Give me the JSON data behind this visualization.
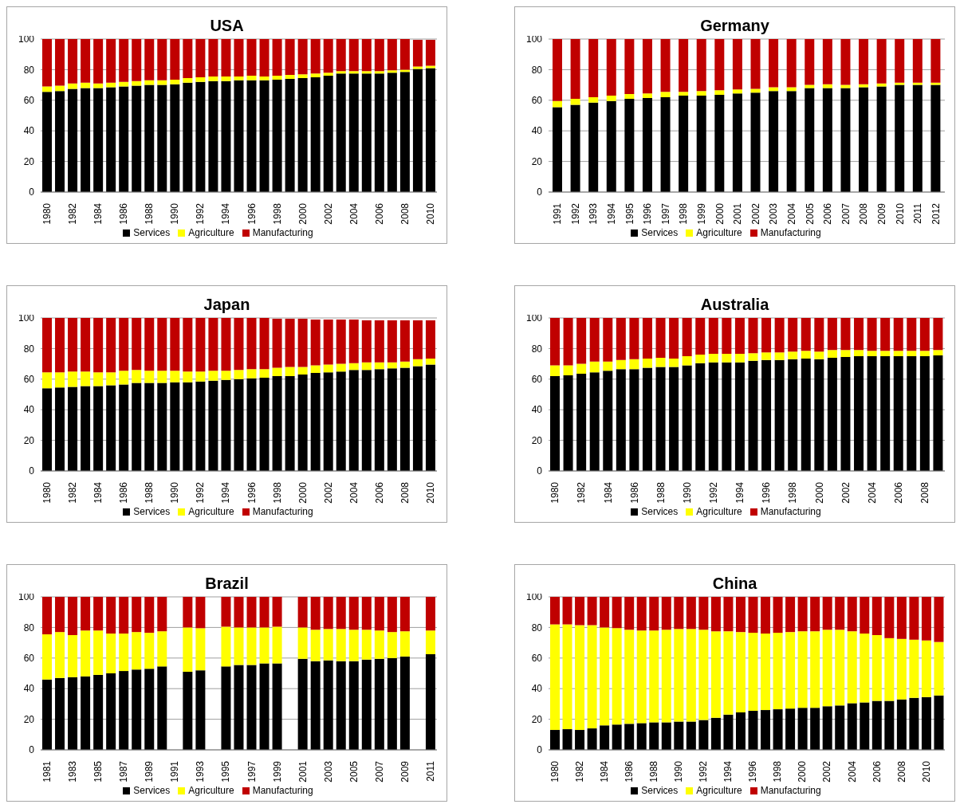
{
  "chart_data": [
    {
      "type": "bar",
      "title": "USA",
      "stacked": true,
      "ylim": [
        0,
        100
      ],
      "yticks": [
        0,
        20,
        40,
        60,
        80,
        100
      ],
      "grid": "y",
      "legend": "bottom",
      "categories": [
        "1980",
        null,
        "1982",
        null,
        "1984",
        null,
        "1986",
        null,
        "1988",
        null,
        "1990",
        null,
        "1992",
        null,
        "1994",
        null,
        "1996",
        null,
        "1998",
        null,
        "2000",
        null,
        "2002",
        null,
        "2004",
        null,
        "2006",
        null,
        "2008",
        null,
        "2010"
      ],
      "series": [
        {
          "name": "Services",
          "color": "#000000",
          "values": [
            65.5,
            66,
            67.5,
            68,
            68,
            68.5,
            69,
            69.5,
            70,
            70,
            70.5,
            71.5,
            72,
            72.5,
            72.5,
            73,
            73,
            73,
            73.5,
            74,
            74.5,
            75,
            76,
            77.5,
            77.5,
            77.5,
            77.5,
            78,
            78.5,
            80.5,
            81
          ]
        },
        {
          "name": "Agriculture",
          "color": "#ffff00",
          "values": [
            3.5,
            3.5,
            3.5,
            3.5,
            3,
            3,
            3,
            3,
            3,
            3,
            3,
            3,
            3,
            3,
            3,
            2.5,
            3,
            2.5,
            2.5,
            2.5,
            2.5,
            2.5,
            2,
            1.5,
            1.5,
            1.5,
            1.5,
            1.5,
            1.5,
            1.5,
            1.5
          ]
        },
        {
          "name": "Manufacturing",
          "color": "#c00000",
          "values": [
            31,
            30.5,
            29,
            28.5,
            29,
            28.5,
            28,
            27.5,
            27,
            27,
            26.5,
            25.5,
            25,
            24.5,
            24.5,
            24.5,
            24,
            24.5,
            24,
            23.5,
            23,
            22.5,
            22,
            21,
            21,
            21,
            21,
            20.5,
            20,
            17.5,
            17
          ]
        }
      ]
    },
    {
      "type": "bar",
      "title": "Germany",
      "stacked": true,
      "ylim": [
        0,
        100
      ],
      "yticks": [
        0,
        20,
        40,
        60,
        80,
        100
      ],
      "grid": "y",
      "legend": "bottom",
      "categories": [
        "1991",
        "1992",
        "1993",
        "1994",
        "1995",
        "1996",
        "1997",
        "1998",
        "1999",
        "2000",
        "2001",
        "2002",
        "2003",
        "2004",
        "2005",
        "2006",
        "2007",
        "2008",
        "2009",
        "2010",
        "2011",
        "2012"
      ],
      "series": [
        {
          "name": "Services",
          "color": "#000000",
          "values": [
            55.5,
            57,
            58.5,
            59.5,
            61,
            61.5,
            62,
            63,
            63,
            63.5,
            64.5,
            65,
            66,
            66,
            68,
            68,
            68,
            68.5,
            69,
            70,
            70,
            70
          ]
        },
        {
          "name": "Agriculture",
          "color": "#ffff00",
          "values": [
            4,
            4,
            3.5,
            3.5,
            3,
            3,
            3.5,
            2.5,
            3,
            3,
            2.5,
            2.5,
            2.5,
            2.5,
            2,
            2.5,
            2,
            2,
            2,
            1.5,
            1.5,
            1.5
          ]
        },
        {
          "name": "Manufacturing",
          "color": "#c00000",
          "values": [
            40.5,
            39,
            38,
            37,
            36,
            35.5,
            34.5,
            34.5,
            34,
            33.5,
            33,
            32.5,
            31.5,
            31.5,
            30,
            29.5,
            30,
            29.5,
            29,
            28.5,
            28.5,
            28.5
          ]
        }
      ]
    },
    {
      "type": "bar",
      "title": "Japan",
      "stacked": true,
      "ylim": [
        0,
        100
      ],
      "yticks": [
        0,
        20,
        40,
        60,
        80,
        100
      ],
      "grid": "y",
      "legend": "bottom",
      "categories": [
        "1980",
        null,
        "1982",
        null,
        "1984",
        null,
        "1986",
        null,
        "1988",
        null,
        "1990",
        null,
        "1992",
        null,
        "1994",
        null,
        "1996",
        null,
        "1998",
        null,
        "2000",
        null,
        "2002",
        null,
        "2004",
        null,
        "2006",
        null,
        "2008",
        null,
        "2010"
      ],
      "series": [
        {
          "name": "Services",
          "color": "#000000",
          "values": [
            54,
            54.5,
            55,
            55.5,
            55.5,
            56,
            56.5,
            57.5,
            57.5,
            57.5,
            58,
            58,
            58.5,
            59,
            59.5,
            60,
            60.5,
            61,
            62,
            62,
            63,
            64,
            64.5,
            65,
            66,
            66,
            66.5,
            67,
            67.5,
            68.5,
            69.5
          ]
        },
        {
          "name": "Agriculture",
          "color": "#ffff00",
          "values": [
            10.5,
            10,
            10,
            9.5,
            9,
            8.5,
            9,
            8.5,
            8,
            8,
            7.5,
            7,
            6.5,
            6.5,
            6,
            6,
            6,
            5.5,
            5.5,
            6,
            5,
            5,
            5,
            5,
            4.5,
            5,
            4.5,
            4,
            4,
            4.5,
            4
          ]
        },
        {
          "name": "Manufacturing",
          "color": "#c00000",
          "values": [
            35.5,
            35.5,
            35,
            35,
            35.5,
            35.5,
            34.5,
            34,
            34.5,
            34.5,
            34.5,
            35,
            35,
            34.5,
            34.5,
            34,
            33.5,
            33.5,
            32,
            31.5,
            31.5,
            30,
            29.5,
            29,
            28.5,
            27.5,
            27.5,
            27.5,
            27,
            25.5,
            25
          ]
        }
      ]
    },
    {
      "type": "bar",
      "title": "Australia",
      "stacked": true,
      "ylim": [
        0,
        100
      ],
      "yticks": [
        0,
        20,
        40,
        60,
        80,
        100
      ],
      "grid": "y",
      "legend": "bottom",
      "categories": [
        "1980",
        null,
        "1982",
        null,
        "1984",
        null,
        "1986",
        null,
        "1988",
        null,
        "1990",
        null,
        "1992",
        null,
        "1994",
        null,
        "1996",
        null,
        "1998",
        null,
        "2000",
        null,
        "2002",
        null,
        "2004",
        null,
        "2006",
        null,
        "2008",
        null
      ],
      "series": [
        {
          "name": "Services",
          "color": "#000000",
          "values": [
            62,
            62.5,
            63.5,
            64.5,
            65.5,
            66.5,
            66.5,
            67.5,
            68,
            68,
            69,
            70.5,
            71,
            71,
            71,
            72,
            72.5,
            72.5,
            73,
            73.5,
            73,
            74,
            74.5,
            75,
            75,
            75,
            75,
            75,
            75,
            75.5
          ]
        },
        {
          "name": "Agriculture",
          "color": "#ffff00",
          "values": [
            7,
            6.5,
            6.5,
            7,
            6,
            6,
            6.5,
            6,
            6,
            5.5,
            6,
            5.5,
            5.5,
            5.5,
            5.5,
            5,
            5,
            5,
            5,
            5,
            5,
            5,
            4.5,
            4,
            3.5,
            3.5,
            3.5,
            3.5,
            3.5,
            3.5
          ]
        },
        {
          "name": "Manufacturing",
          "color": "#c00000",
          "values": [
            31,
            31,
            30,
            28.5,
            28.5,
            27.5,
            27,
            26.5,
            26,
            26.5,
            25,
            24,
            23.5,
            23.5,
            23.5,
            23,
            22.5,
            22.5,
            22,
            21.5,
            22,
            21,
            21,
            21,
            21.5,
            21.5,
            21.5,
            21.5,
            21.5,
            21
          ]
        }
      ]
    },
    {
      "type": "bar",
      "title": "Brazil",
      "stacked": true,
      "ylim": [
        0,
        100
      ],
      "yticks": [
        0,
        20,
        40,
        60,
        80,
        100
      ],
      "grid": "y",
      "legend": "bottom",
      "categories": [
        "1981",
        null,
        "1983",
        null,
        "1985",
        null,
        "1987",
        null,
        "1989",
        null,
        "1991",
        null,
        "1993",
        null,
        "1995",
        null,
        "1997",
        null,
        "1999",
        null,
        "2001",
        null,
        "2003",
        null,
        "2005",
        null,
        "2007",
        null,
        "2009",
        null,
        "2011"
      ],
      "series": [
        {
          "name": "Services",
          "color": "#000000",
          "values": [
            46,
            47,
            47.5,
            48,
            49,
            50,
            51.5,
            52.5,
            53,
            54.5,
            null,
            51,
            52,
            null,
            54.5,
            55.5,
            55.5,
            56.5,
            56.5,
            null,
            59.5,
            58,
            58.5,
            58,
            58,
            59,
            59.5,
            60,
            61,
            null,
            62.5
          ]
        },
        {
          "name": "Agriculture",
          "color": "#ffff00",
          "values": [
            29.5,
            30,
            27.5,
            30,
            29,
            26,
            24.5,
            24.5,
            23.5,
            23,
            null,
            29,
            27.5,
            null,
            26,
            24.5,
            24.5,
            23.5,
            24,
            null,
            20.5,
            20.5,
            20.5,
            21,
            20.5,
            19.5,
            18.5,
            17,
            16.5,
            null,
            15.5
          ]
        },
        {
          "name": "Manufacturing",
          "color": "#c00000",
          "values": [
            24.5,
            23,
            25,
            22,
            22,
            24,
            24,
            23,
            23.5,
            22.5,
            null,
            20,
            20.5,
            null,
            19.5,
            20,
            20,
            20,
            19.5,
            null,
            20,
            21.5,
            21,
            21,
            21.5,
            21.5,
            22,
            23,
            22.5,
            null,
            22
          ]
        }
      ]
    },
    {
      "type": "bar",
      "title": "China",
      "stacked": true,
      "ylim": [
        0,
        100
      ],
      "yticks": [
        0,
        20,
        40,
        60,
        80,
        100
      ],
      "grid": "y",
      "legend": "bottom",
      "categories": [
        "1980",
        null,
        "1982",
        null,
        "1984",
        null,
        "1986",
        null,
        "1988",
        null,
        "1990",
        null,
        "1992",
        null,
        "1994",
        null,
        "1996",
        null,
        "1998",
        null,
        "2000",
        null,
        "2002",
        null,
        "2004",
        null,
        "2006",
        null,
        "2008",
        null,
        "2010",
        null
      ],
      "series": [
        {
          "name": "Services",
          "color": "#000000",
          "values": [
            13,
            13.5,
            13,
            14,
            16,
            16.5,
            17,
            17.5,
            18,
            18,
            18.5,
            18.5,
            19.5,
            21,
            23,
            24.5,
            25.5,
            26,
            26.5,
            27,
            27.5,
            27.5,
            28.5,
            29,
            30.5,
            31,
            32,
            32,
            33,
            34,
            34.5,
            35.5
          ]
        },
        {
          "name": "Agriculture",
          "color": "#ffff00",
          "values": [
            69,
            68.5,
            68.5,
            67.5,
            64,
            63,
            61.5,
            60.5,
            60,
            60.5,
            60.5,
            60.5,
            59,
            56.5,
            54.5,
            52.5,
            51,
            50,
            50,
            50,
            50,
            50,
            50,
            49.5,
            47,
            45,
            43,
            41,
            39.5,
            38,
            37,
            35
          ]
        },
        {
          "name": "Manufacturing",
          "color": "#c00000",
          "values": [
            18,
            18,
            18.5,
            18.5,
            20,
            20.5,
            21.5,
            22,
            22,
            21.5,
            21,
            21,
            21.5,
            22.5,
            22.5,
            23,
            23.5,
            24,
            23.5,
            23,
            22.5,
            22.5,
            21.5,
            21.5,
            22.5,
            24,
            25,
            27,
            27.5,
            28,
            28.5,
            29.5
          ]
        }
      ]
    }
  ]
}
